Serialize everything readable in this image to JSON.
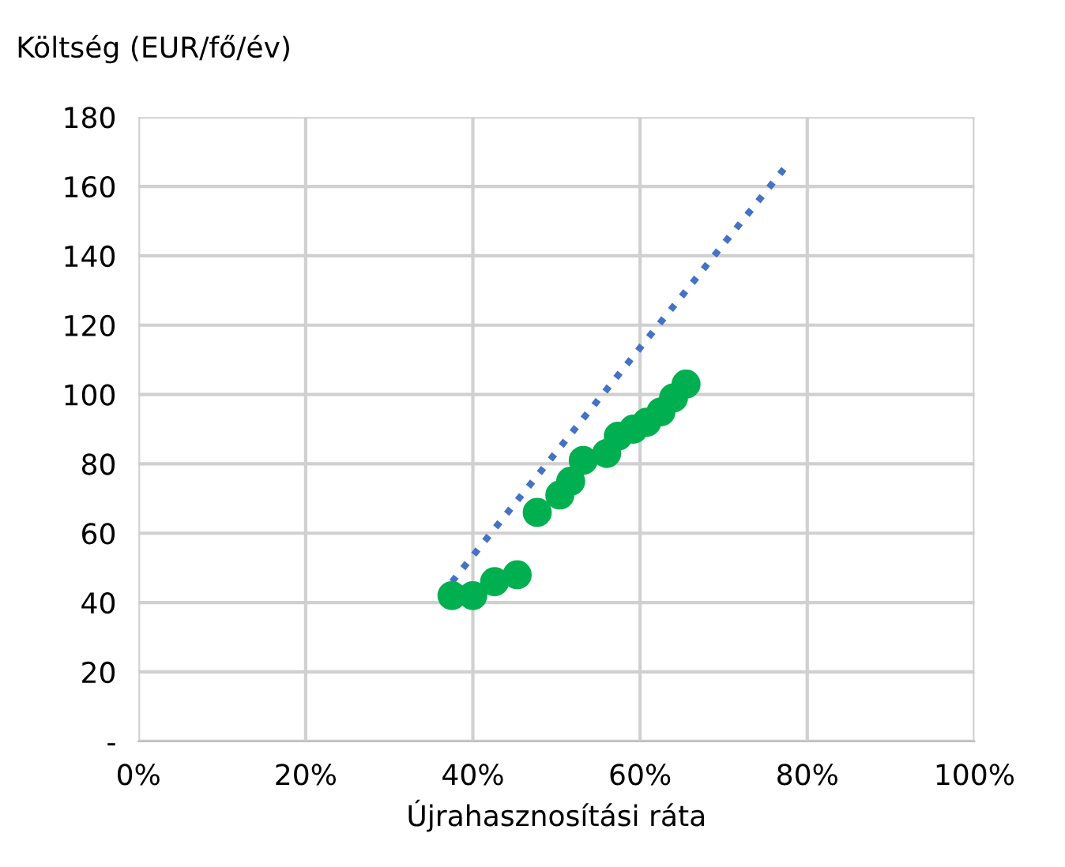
{
  "chart_data": {
    "type": "scatter",
    "ylabel": "Költség (EUR/fő/év)",
    "xlabel": "Újrahasznosítási ráta",
    "xlim": [
      0,
      100
    ],
    "xticks": [
      {
        "value": 0,
        "label": "0%"
      },
      {
        "value": 20,
        "label": "20%"
      },
      {
        "value": 40,
        "label": "40%"
      },
      {
        "value": 60,
        "label": "60%"
      },
      {
        "value": 80,
        "label": "80%"
      },
      {
        "value": 100,
        "label": "100%"
      }
    ],
    "ylim": [
      0,
      180
    ],
    "yticks": [
      {
        "value": 0,
        "label": "-"
      },
      20,
      40,
      60,
      80,
      100,
      120,
      140,
      160,
      180
    ],
    "grid": true,
    "marker": "circle",
    "series": [
      {
        "color": "#00b050",
        "x": [
          37.5,
          40,
          42.6,
          45.3,
          47.7,
          50.4,
          51.7,
          53.2,
          56,
          57.4,
          59.2,
          60.8,
          62.5,
          64,
          65.5
        ],
        "values": [
          42,
          42,
          46,
          48,
          66,
          71,
          75,
          81,
          83,
          88,
          90,
          92,
          95,
          99,
          103
        ]
      },
      {
        "type": "line",
        "color": "#4472c4",
        "line_style": "dotted",
        "marker": "none",
        "x": [
          37.5,
          77.2
        ],
        "values": [
          46,
          165
        ]
      }
    ]
  }
}
